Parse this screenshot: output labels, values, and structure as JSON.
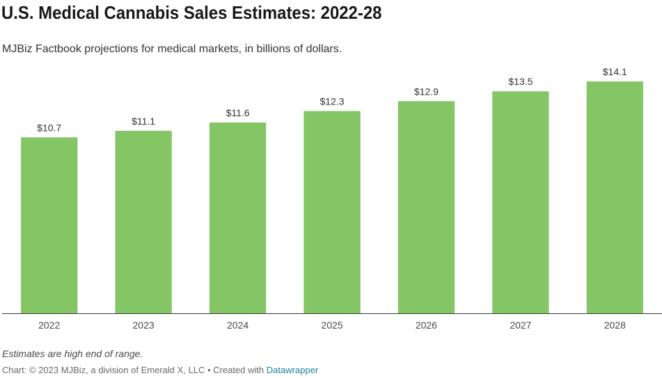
{
  "title": "U.S. Medical Cannabis Sales Estimates: 2022-28",
  "subtitle": "MJBiz Factbook projections for medical markets, in billions of dollars.",
  "notes": "Estimates are high end of range.",
  "footer": {
    "credit": "Chart: © 2023 MJBiz, a division of Emerald X, LLC • Created with ",
    "tool_link": "Datawrapper"
  },
  "colors": {
    "bar": "#84c565",
    "axis": "#333333"
  },
  "chart_data": {
    "type": "bar",
    "title": "U.S. Medical Cannabis Sales Estimates: 2022-28",
    "subtitle": "MJBiz Factbook projections for medical markets, in billions of dollars.",
    "xlabel": "",
    "ylabel": "",
    "categories": [
      "2022",
      "2023",
      "2024",
      "2025",
      "2026",
      "2027",
      "2028"
    ],
    "values": [
      10.7,
      11.1,
      11.6,
      12.3,
      12.9,
      13.5,
      14.1
    ],
    "value_labels": [
      "$10.7",
      "$11.1",
      "$11.6",
      "$12.3",
      "$12.9",
      "$13.5",
      "$14.1"
    ],
    "ylim": [
      0,
      14.1
    ],
    "grid": false,
    "legend": "none"
  }
}
